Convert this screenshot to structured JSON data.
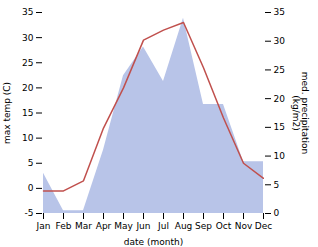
{
  "chart_data": {
    "type": "line",
    "xlabel": "date (month)",
    "ylabel": "max temp (C)",
    "y2label": "med. precipitation\n(kg/m2)",
    "categories": [
      "Jan",
      "Feb",
      "Mar",
      "Apr",
      "May",
      "Jun",
      "Jul",
      "Aug",
      "Sep",
      "Oct",
      "Nov",
      "Dec"
    ],
    "series": [
      {
        "type": "area",
        "axis": "y2",
        "color": "#b8c4e8",
        "values": [
          7,
          0.5,
          0.5,
          11,
          24,
          29,
          23,
          34,
          19,
          19,
          9,
          9
        ]
      },
      {
        "type": "line",
        "color": "#c0504d",
        "values": [
          -0.5,
          -0.5,
          1.5,
          12,
          20,
          29.5,
          31.5,
          33,
          24,
          14,
          5,
          2
        ]
      }
    ],
    "ylim": [
      -5,
      35
    ],
    "yticks": [
      -5,
      0,
      5,
      10,
      15,
      20,
      25,
      30,
      35
    ],
    "y2lim": [
      0,
      35
    ],
    "y2ticks": [
      0,
      5,
      10,
      15,
      20,
      25,
      30,
      35
    ],
    "grid": false
  }
}
